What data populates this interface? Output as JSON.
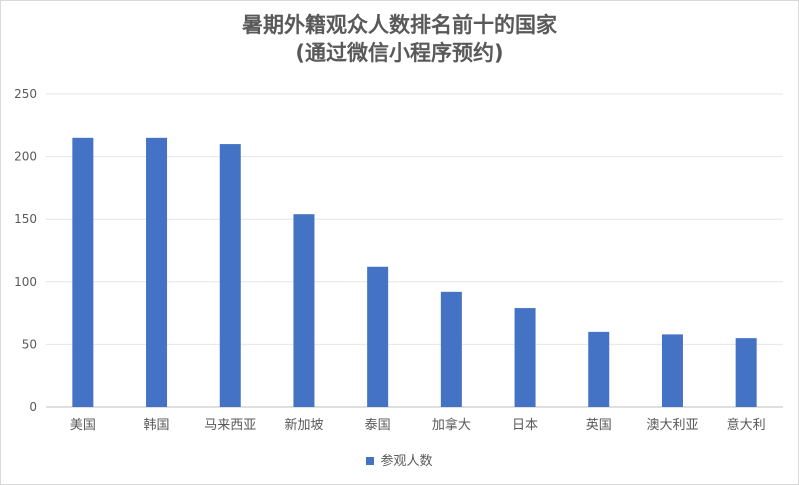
{
  "chart_data": {
    "type": "bar",
    "title": [
      "暑期外籍观众人数排名前十的国家",
      "(通过微信小程序预约)"
    ],
    "xlabel": "",
    "ylabel": "",
    "categories": [
      "美国",
      "韩国",
      "马来西亚",
      "新加坡",
      "泰国",
      "加拿大",
      "日本",
      "英国",
      "澳大利亚",
      "意大利"
    ],
    "series": [
      {
        "name": "参观人数",
        "color": "#4472c4",
        "values": [
          215,
          215,
          210,
          154,
          112,
          92,
          79,
          60,
          58,
          55
        ]
      }
    ],
    "ylim": [
      0,
      250
    ],
    "yticks": [
      0,
      50,
      100,
      150,
      200,
      250
    ],
    "grid": true,
    "legend": "bottom"
  }
}
